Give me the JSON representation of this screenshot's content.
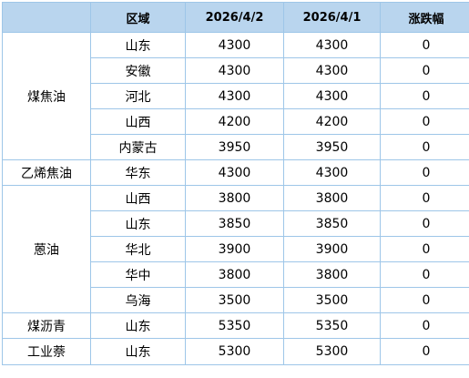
{
  "table": {
    "headers": {
      "product": "",
      "region": "区域",
      "date1": "2026/4/2",
      "date2": "2026/4/1",
      "change": "涨跌幅"
    },
    "groups": [
      {
        "product": "煤焦油",
        "rows": [
          {
            "region": "山东",
            "date1": "4300",
            "date2": "4300",
            "change": "0"
          },
          {
            "region": "安徽",
            "date1": "4300",
            "date2": "4300",
            "change": "0"
          },
          {
            "region": "河北",
            "date1": "4300",
            "date2": "4300",
            "change": "0"
          },
          {
            "region": "山西",
            "date1": "4200",
            "date2": "4200",
            "change": "0"
          },
          {
            "region": "内蒙古",
            "date1": "3950",
            "date2": "3950",
            "change": "0"
          }
        ]
      },
      {
        "product": "乙烯焦油",
        "rows": [
          {
            "region": "华东",
            "date1": "4300",
            "date2": "4300",
            "change": "0"
          }
        ]
      },
      {
        "product": "蒽油",
        "rows": [
          {
            "region": "山西",
            "date1": "3800",
            "date2": "3800",
            "change": "0"
          },
          {
            "region": "山东",
            "date1": "3850",
            "date2": "3850",
            "change": "0"
          },
          {
            "region": "华北",
            "date1": "3900",
            "date2": "3900",
            "change": "0"
          },
          {
            "region": "华中",
            "date1": "3800",
            "date2": "3800",
            "change": "0"
          },
          {
            "region": "乌海",
            "date1": "3500",
            "date2": "3500",
            "change": "0"
          }
        ]
      },
      {
        "product": "煤沥青",
        "rows": [
          {
            "region": "山东",
            "date1": "5350",
            "date2": "5350",
            "change": "0"
          }
        ]
      },
      {
        "product": "工业萘",
        "rows": [
          {
            "region": "山东",
            "date1": "5300",
            "date2": "5300",
            "change": "0"
          }
        ]
      }
    ]
  },
  "colors": {
    "header_background": "#b9d5ee",
    "border": "#9ec6e8",
    "text": "#000000"
  }
}
